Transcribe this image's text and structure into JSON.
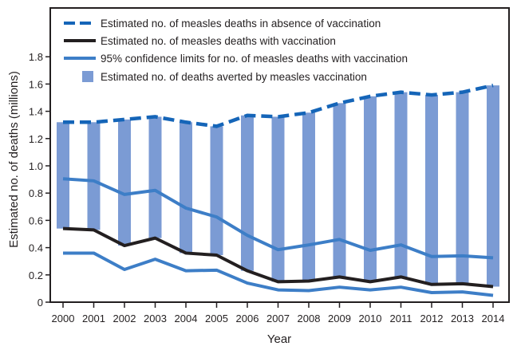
{
  "chart_data": {
    "type": "bar",
    "title": "",
    "xlabel": "Year",
    "ylabel": "Estimated no. of deaths (millions)",
    "ylim": [
      0,
      2.0
    ],
    "yticks": [
      0,
      0.2,
      0.4,
      0.6,
      0.8,
      1.0,
      1.2,
      1.4,
      1.6,
      1.8
    ],
    "ytick_labels": [
      "0",
      "0.2",
      "0.4",
      "0.6",
      "0.8",
      "1.0",
      "1.2",
      "1.4",
      "1.6",
      "1.8"
    ],
    "grid": false,
    "legend_position": "top-left",
    "categories": [
      "2000",
      "2001",
      "2002",
      "2003",
      "2004",
      "2005",
      "2006",
      "2007",
      "2008",
      "2009",
      "2010",
      "2011",
      "2012",
      "2013",
      "2014"
    ],
    "series": [
      {
        "name": "Estimated no. of measles deaths in absence of vaccination",
        "type": "line",
        "style": "dashed",
        "color": "#1565b8",
        "values": [
          1.32,
          1.32,
          1.34,
          1.36,
          1.32,
          1.29,
          1.37,
          1.36,
          1.39,
          1.46,
          1.51,
          1.54,
          1.52,
          1.54,
          1.59
        ]
      },
      {
        "name": "Estimated no. of measles deaths with vaccination",
        "type": "line",
        "style": "solid",
        "color": "#231f20",
        "values": [
          0.54,
          0.53,
          0.415,
          0.47,
          0.36,
          0.345,
          0.23,
          0.15,
          0.155,
          0.185,
          0.15,
          0.185,
          0.13,
          0.135,
          0.114
        ]
      },
      {
        "name": "95% confidence limits for no. of measles deaths with vaccination",
        "type": "line",
        "style": "solid",
        "color": "#3d7ec7",
        "upper": [
          0.905,
          0.89,
          0.79,
          0.82,
          0.69,
          0.625,
          0.49,
          0.385,
          0.42,
          0.46,
          0.38,
          0.42,
          0.335,
          0.34,
          0.325
        ],
        "lower": [
          0.36,
          0.36,
          0.24,
          0.315,
          0.23,
          0.235,
          0.14,
          0.09,
          0.085,
          0.11,
          0.09,
          0.11,
          0.07,
          0.075,
          0.05
        ]
      },
      {
        "name": "Estimated no. of deaths averted by measles vaccination",
        "type": "bar",
        "color": "#7b9bd4",
        "note": "bar spans from deaths-with-vaccination to deaths-without-vaccination",
        "values": [
          0.78,
          0.79,
          0.925,
          0.89,
          0.96,
          0.945,
          1.14,
          1.21,
          1.235,
          1.275,
          1.36,
          1.355,
          1.39,
          1.405,
          1.476
        ]
      }
    ]
  }
}
